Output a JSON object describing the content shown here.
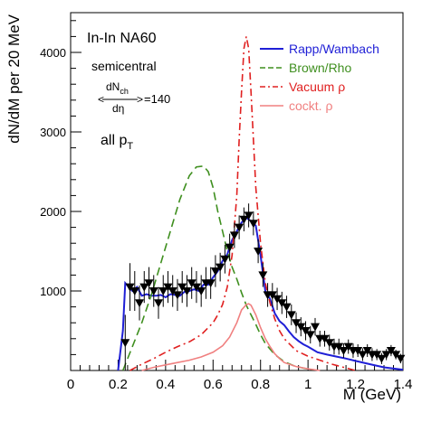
{
  "chart_data": {
    "type": "line",
    "title": "",
    "xlabel": "M (GeV)",
    "ylabel": "dN/dM per 20 MeV",
    "xlim": [
      0,
      1.4
    ],
    "ylim": [
      0,
      4500
    ],
    "x_ticks": [
      "0",
      "0.2",
      "0.4",
      "0.6",
      "0.8",
      "1",
      "1.2",
      "1.4"
    ],
    "y_ticks": [
      "1000",
      "2000",
      "3000",
      "4000"
    ],
    "y_tick_values": [
      1000,
      2000,
      3000,
      4000
    ],
    "grid": false,
    "legend_position": "top-right",
    "annotations": {
      "experiment": "In-In NA60",
      "centrality": "semicentral",
      "dn_num": "dN",
      "dn_num_sub": "ch",
      "dn_den": "dη",
      "dn_value": "=140",
      "pt_main": "all p",
      "pt_sub": "T"
    },
    "series": [
      {
        "name": "Rapp/Wambach",
        "color": "#1f1fd6",
        "dash": "solid",
        "x": [
          0.2,
          0.22,
          0.23,
          0.26,
          0.28,
          0.3,
          0.32,
          0.34,
          0.36,
          0.38,
          0.4,
          0.42,
          0.44,
          0.46,
          0.48,
          0.5,
          0.52,
          0.54,
          0.56,
          0.58,
          0.6,
          0.62,
          0.64,
          0.66,
          0.68,
          0.7,
          0.72,
          0.74,
          0.76,
          0.78,
          0.8,
          0.82,
          0.84,
          0.86,
          0.88,
          0.9,
          0.92,
          0.94,
          0.96,
          0.98,
          1.0,
          1.04,
          1.08,
          1.12,
          1.16,
          1.2,
          1.26,
          1.32,
          1.4
        ],
        "values": [
          0,
          500,
          1100,
          1000,
          1050,
          940,
          960,
          940,
          940,
          950,
          920,
          960,
          950,
          940,
          990,
          1000,
          1020,
          1000,
          1080,
          1080,
          1170,
          1250,
          1380,
          1460,
          1640,
          1750,
          1860,
          1920,
          1880,
          1820,
          1450,
          1000,
          900,
          720,
          620,
          570,
          490,
          420,
          370,
          330,
          300,
          230,
          200,
          175,
          150,
          120,
          80,
          40,
          10
        ]
      },
      {
        "name": "Brown/Rho",
        "color": "#3f8f1f",
        "dash": "dashed",
        "x": [
          0.22,
          0.26,
          0.3,
          0.34,
          0.38,
          0.42,
          0.46,
          0.5,
          0.53,
          0.56,
          0.58,
          0.6,
          0.62,
          0.64,
          0.66,
          0.68,
          0.7,
          0.72,
          0.74,
          0.76,
          0.78,
          0.8,
          0.82,
          0.86,
          0.9,
          0.94,
          0.98,
          1.02
        ],
        "values": [
          0,
          300,
          600,
          950,
          1350,
          1750,
          2150,
          2450,
          2560,
          2570,
          2500,
          2300,
          2000,
          1750,
          1500,
          1300,
          1150,
          980,
          820,
          700,
          580,
          450,
          340,
          200,
          110,
          60,
          30,
          10
        ]
      },
      {
        "name": "Vacuum ρ",
        "color": "#e02020",
        "dash": "dashdot",
        "x": [
          0.25,
          0.3,
          0.35,
          0.4,
          0.45,
          0.5,
          0.55,
          0.6,
          0.62,
          0.64,
          0.66,
          0.68,
          0.7,
          0.71,
          0.72,
          0.73,
          0.74,
          0.75,
          0.76,
          0.78,
          0.8,
          0.82,
          0.84,
          0.86,
          0.88,
          0.9,
          0.95,
          1.0,
          1.05,
          1.1,
          1.15,
          1.2
        ],
        "values": [
          0,
          80,
          150,
          230,
          300,
          360,
          450,
          600,
          700,
          830,
          1050,
          1450,
          2200,
          2900,
          3500,
          4050,
          4200,
          4050,
          3500,
          2300,
          1600,
          1100,
          850,
          650,
          500,
          400,
          250,
          180,
          130,
          80,
          40,
          0
        ]
      },
      {
        "name": "cockt. ρ",
        "color": "#f08080",
        "dash": "solid",
        "x": [
          0.3,
          0.35,
          0.4,
          0.45,
          0.5,
          0.55,
          0.6,
          0.64,
          0.67,
          0.7,
          0.72,
          0.74,
          0.75,
          0.76,
          0.78,
          0.8,
          0.82,
          0.84,
          0.86,
          0.88,
          0.9,
          0.95,
          1.0,
          1.05
        ],
        "values": [
          0,
          40,
          70,
          100,
          130,
          170,
          230,
          310,
          420,
          600,
          760,
          830,
          840,
          820,
          700,
          540,
          400,
          300,
          210,
          150,
          100,
          50,
          20,
          0
        ]
      }
    ],
    "data_points": {
      "name": "NA60 data",
      "color": "#000000",
      "x": [
        0.23,
        0.25,
        0.27,
        0.29,
        0.31,
        0.33,
        0.35,
        0.37,
        0.39,
        0.41,
        0.43,
        0.45,
        0.47,
        0.49,
        0.51,
        0.53,
        0.55,
        0.57,
        0.59,
        0.61,
        0.63,
        0.65,
        0.67,
        0.69,
        0.71,
        0.73,
        0.75,
        0.77,
        0.79,
        0.81,
        0.83,
        0.85,
        0.87,
        0.89,
        0.91,
        0.93,
        0.95,
        0.97,
        0.99,
        1.01,
        1.03,
        1.05,
        1.07,
        1.09,
        1.11,
        1.13,
        1.15,
        1.17,
        1.19,
        1.21,
        1.23,
        1.25,
        1.27,
        1.29,
        1.31,
        1.33,
        1.35,
        1.37,
        1.39
      ],
      "y": [
        350,
        1050,
        1000,
        850,
        1050,
        1100,
        1000,
        850,
        1000,
        1050,
        1000,
        950,
        1050,
        1000,
        1100,
        1050,
        1000,
        1100,
        1100,
        1250,
        1300,
        1400,
        1550,
        1700,
        1800,
        1900,
        1950,
        1850,
        1500,
        1200,
        950,
        950,
        900,
        850,
        800,
        700,
        600,
        550,
        500,
        450,
        550,
        400,
        400,
        350,
        300,
        300,
        250,
        300,
        250,
        250,
        200,
        250,
        200,
        200,
        150,
        200,
        250,
        200,
        150
      ],
      "err": [
        350,
        300,
        250,
        220,
        200,
        200,
        200,
        200,
        200,
        200,
        200,
        200,
        200,
        200,
        200,
        200,
        200,
        200,
        200,
        200,
        180,
        180,
        170,
        160,
        150,
        150,
        150,
        150,
        150,
        150,
        150,
        150,
        140,
        140,
        140,
        130,
        130,
        120,
        120,
        110,
        110,
        100,
        100,
        100,
        100,
        100,
        90,
        90,
        90,
        80,
        80,
        80,
        80,
        70,
        70,
        70,
        70,
        60,
        60
      ]
    }
  }
}
